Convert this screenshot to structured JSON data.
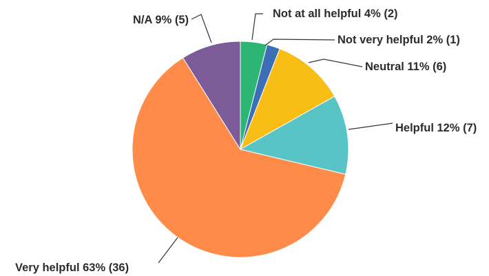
{
  "chart_data": {
    "type": "pie",
    "title": "",
    "slices": [
      {
        "name": "Not at all helpful",
        "percent": 4,
        "count": 2,
        "label": "Not at all helpful 4% (2)",
        "color": "#2BB673"
      },
      {
        "name": "Not very helpful",
        "percent": 2,
        "count": 1,
        "label": "Not very helpful 2% (1)",
        "color": "#3D6FB6"
      },
      {
        "name": "Neutral",
        "percent": 11,
        "count": 6,
        "label": "Neutral 11% (6)",
        "color": "#F8BE15"
      },
      {
        "name": "Helpful",
        "percent": 12,
        "count": 7,
        "label": "Helpful 12% (7)",
        "color": "#59C4C6"
      },
      {
        "name": "Very helpful",
        "percent": 63,
        "count": 36,
        "label": "Very helpful 63% (36)",
        "color": "#FF8B4A"
      },
      {
        "name": "N/A",
        "percent": 9,
        "count": 5,
        "label": "N/A 9% (5)",
        "color": "#7B5C98"
      }
    ],
    "start": "12 o'clock",
    "direction": "clockwise",
    "legend": "none (labels with leader lines)"
  }
}
